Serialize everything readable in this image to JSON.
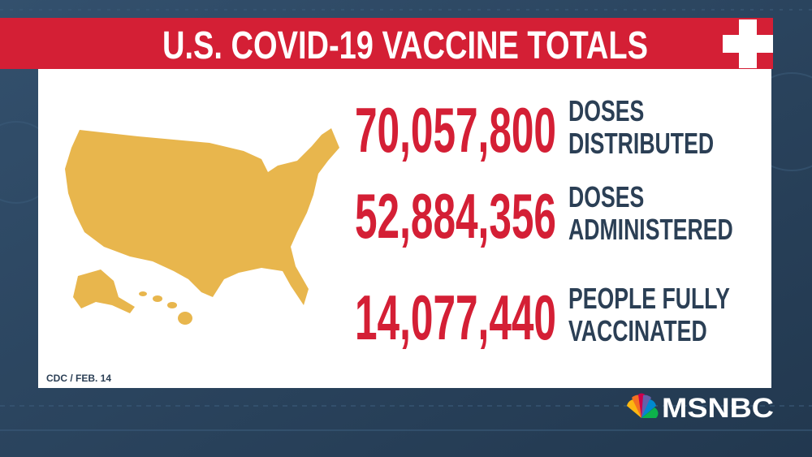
{
  "header": {
    "title": "U.S. COVID-19 VACCINE TOTALS"
  },
  "stats": [
    {
      "value": "70,057,800",
      "label": [
        "DOSES",
        "DISTRIBUTED"
      ]
    },
    {
      "value": "52,884,356",
      "label": [
        "DOSES",
        "ADMINISTERED"
      ]
    },
    {
      "value": "14,077,440",
      "label": [
        "PEOPLE FULLY",
        "VACCINATED"
      ]
    }
  ],
  "source": "CDC / FEB. 14",
  "logo": "MSNBC"
}
